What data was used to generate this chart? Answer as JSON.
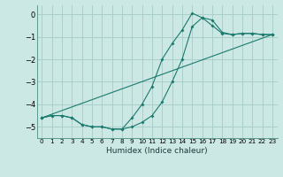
{
  "title": "",
  "xlabel": "Humidex (Indice chaleur)",
  "bg_color": "#cce8e4",
  "grid_color": "#aacfcb",
  "line_color": "#1a7a6e",
  "xlim": [
    -0.5,
    23.5
  ],
  "ylim": [
    -5.5,
    0.4
  ],
  "xticks": [
    0,
    1,
    2,
    3,
    4,
    5,
    6,
    7,
    8,
    9,
    10,
    11,
    12,
    13,
    14,
    15,
    16,
    17,
    18,
    19,
    20,
    21,
    22,
    23
  ],
  "yticks": [
    0,
    -1,
    -2,
    -3,
    -4,
    -5
  ],
  "line1_x": [
    0,
    1,
    2,
    3,
    4,
    5,
    6,
    7,
    8,
    9,
    10,
    11,
    12,
    13,
    14,
    15,
    16,
    17,
    18,
    19,
    20,
    21,
    22,
    23
  ],
  "line1_y": [
    -4.6,
    -4.5,
    -4.5,
    -4.6,
    -4.9,
    -5.0,
    -5.0,
    -5.1,
    -5.1,
    -4.6,
    -4.0,
    -3.2,
    -2.0,
    -1.3,
    -0.7,
    0.05,
    -0.15,
    -0.5,
    -0.85,
    -0.9,
    -0.85,
    -0.85,
    -0.9,
    -0.9
  ],
  "line2_x": [
    0,
    1,
    2,
    3,
    4,
    5,
    6,
    7,
    8,
    9,
    10,
    11,
    12,
    13,
    14,
    15,
    16,
    17,
    18,
    19,
    20,
    21,
    22,
    23
  ],
  "line2_y": [
    -4.6,
    -4.5,
    -4.5,
    -4.6,
    -4.9,
    -5.0,
    -5.0,
    -5.1,
    -5.1,
    -5.0,
    -4.8,
    -4.5,
    -3.9,
    -3.0,
    -2.0,
    -0.55,
    -0.15,
    -0.25,
    -0.8,
    -0.9,
    -0.85,
    -0.85,
    -0.9,
    -0.9
  ],
  "line3_x": [
    0,
    23
  ],
  "line3_y": [
    -4.6,
    -0.9
  ]
}
